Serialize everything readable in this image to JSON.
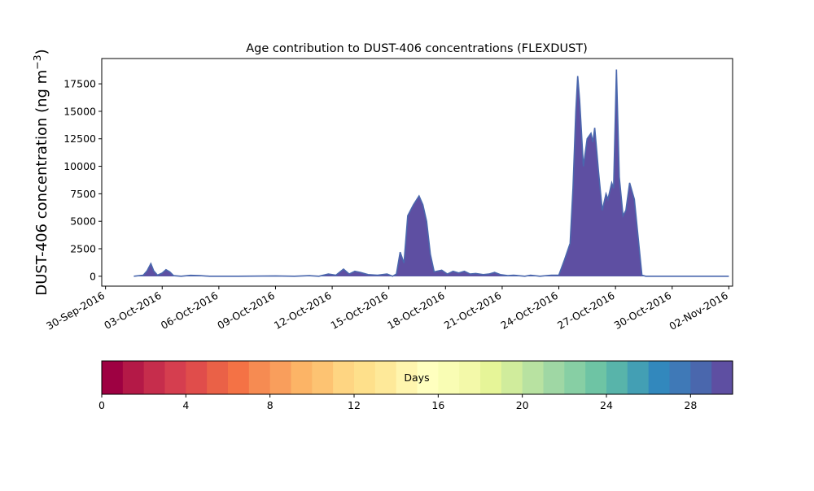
{
  "chart_data": {
    "type": "area",
    "title": "Age contribution to DUST-406 concentrations (FLEXDUST)",
    "ylabel_main": "DUST-406 concentration (ng m",
    "ylabel_sup": "−3",
    "ylabel_close": ")",
    "xlabel": "",
    "x_start": "30-Sep-2016",
    "xlim_days": [
      -0.2,
      33.2
    ],
    "ylim": [
      -900,
      19800
    ],
    "x_ticks": [
      "30-Sep-2016",
      "03-Oct-2016",
      "06-Oct-2016",
      "09-Oct-2016",
      "12-Oct-2016",
      "15-Oct-2016",
      "18-Oct-2016",
      "21-Oct-2016",
      "24-Oct-2016",
      "27-Oct-2016",
      "30-Oct-2016",
      "02-Nov-2016"
    ],
    "y_ticks": [
      0,
      2500,
      5000,
      7500,
      10000,
      12500,
      15000,
      17500
    ],
    "y_tick_labels": [
      "0",
      "2500",
      "5000",
      "7500",
      "10000",
      "12500",
      "15000",
      "17500"
    ],
    "total_concentration": [
      [
        1.5,
        0
      ],
      [
        2.0,
        100
      ],
      [
        2.2,
        500
      ],
      [
        2.4,
        1150
      ],
      [
        2.55,
        500
      ],
      [
        2.75,
        100
      ],
      [
        3.0,
        300
      ],
      [
        3.2,
        600
      ],
      [
        3.4,
        400
      ],
      [
        3.6,
        50
      ],
      [
        4.0,
        0
      ],
      [
        4.5,
        80
      ],
      [
        5.0,
        50
      ],
      [
        5.5,
        0
      ],
      [
        7.0,
        0
      ],
      [
        9.0,
        30
      ],
      [
        10.0,
        0
      ],
      [
        10.8,
        50
      ],
      [
        11.3,
        0
      ],
      [
        11.8,
        200
      ],
      [
        12.2,
        100
      ],
      [
        12.6,
        650
      ],
      [
        12.9,
        200
      ],
      [
        13.2,
        450
      ],
      [
        13.5,
        350
      ],
      [
        13.9,
        150
      ],
      [
        14.4,
        100
      ],
      [
        14.9,
        200
      ],
      [
        15.2,
        0
      ],
      [
        15.4,
        200
      ],
      [
        15.6,
        2200
      ],
      [
        15.8,
        1200
      ],
      [
        16.0,
        5500
      ],
      [
        16.3,
        6500
      ],
      [
        16.6,
        7300
      ],
      [
        16.8,
        6500
      ],
      [
        17.0,
        5000
      ],
      [
        17.2,
        2000
      ],
      [
        17.4,
        400
      ],
      [
        17.8,
        550
      ],
      [
        18.1,
        200
      ],
      [
        18.4,
        450
      ],
      [
        18.7,
        300
      ],
      [
        19.0,
        450
      ],
      [
        19.3,
        200
      ],
      [
        19.6,
        250
      ],
      [
        20.0,
        150
      ],
      [
        20.3,
        200
      ],
      [
        20.6,
        350
      ],
      [
        20.9,
        150
      ],
      [
        21.3,
        50
      ],
      [
        21.6,
        100
      ],
      [
        22.2,
        0
      ],
      [
        22.5,
        100
      ],
      [
        23.0,
        0
      ],
      [
        23.6,
        100
      ],
      [
        24.0,
        100
      ],
      [
        24.3,
        1500
      ],
      [
        24.6,
        3000
      ],
      [
        24.75,
        8000
      ],
      [
        24.9,
        15000
      ],
      [
        25.0,
        18200
      ],
      [
        25.1,
        16000
      ],
      [
        25.3,
        10000
      ],
      [
        25.5,
        12500
      ],
      [
        25.7,
        13000
      ],
      [
        25.8,
        12200
      ],
      [
        25.9,
        13500
      ],
      [
        26.1,
        9500
      ],
      [
        26.3,
        6000
      ],
      [
        26.5,
        7500
      ],
      [
        26.6,
        7000
      ],
      [
        26.8,
        8500
      ],
      [
        26.9,
        8000
      ],
      [
        27.05,
        18800
      ],
      [
        27.2,
        9000
      ],
      [
        27.4,
        5500
      ],
      [
        27.55,
        6000
      ],
      [
        27.75,
        8500
      ],
      [
        28.0,
        7000
      ],
      [
        28.2,
        3500
      ],
      [
        28.4,
        100
      ],
      [
        28.6,
        0
      ],
      [
        30.0,
        0
      ],
      [
        32.0,
        0
      ],
      [
        33.0,
        0
      ]
    ],
    "colorbar": {
      "label": "Days",
      "ticks": [
        0,
        4,
        8,
        12,
        16,
        20,
        24,
        28
      ],
      "tick_labels": [
        "0",
        "4",
        "8",
        "12",
        "16",
        "20",
        "24",
        "28"
      ],
      "range": [
        0,
        30
      ],
      "colors": [
        "#9e0142",
        "#b41947",
        "#c62d4c",
        "#d53e4f",
        "#e04d4b",
        "#ea6147",
        "#f47245",
        "#f68b52",
        "#f99e5c",
        "#fcb466",
        "#fdc372",
        "#fed582",
        "#fee08b",
        "#fee999",
        "#fff5ae",
        "#ffffbf",
        "#f9fdb4",
        "#f3f9a9",
        "#e6f598",
        "#d0ec9c",
        "#b8e2a1",
        "#9fd7a4",
        "#87cfa4",
        "#6ec4a4",
        "#58b4aa",
        "#439fb4",
        "#3288bd",
        "#3f79b7",
        "#4a67ad",
        "#5e4fa2"
      ]
    }
  }
}
